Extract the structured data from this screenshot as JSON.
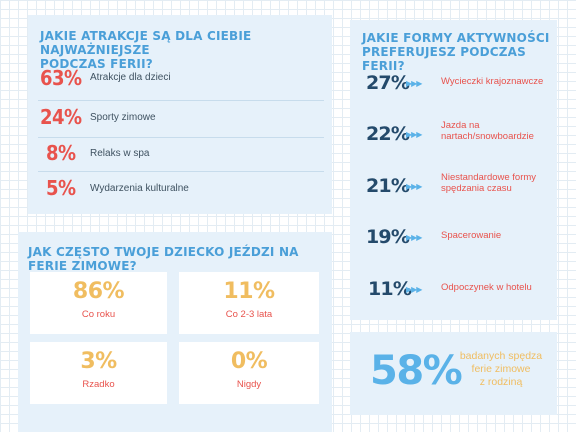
{
  "chart_data": [
    {
      "type": "table",
      "title": "JAKIE ATRAKCJE SĄ DLA CIEBIE NAJWAŻNIEJSZE PODCZAS FERII?",
      "categories": [
        "Atrakcje dla dzieci",
        "Sporty zimowe",
        "Relaks w spa",
        "Wydarzenia kulturalne"
      ],
      "values": [
        63,
        24,
        8,
        5
      ],
      "unit": "%"
    },
    {
      "type": "table",
      "title": "JAK CZĘSTO TWOJE DZIECKO JEŹDZI NA FERIE ZIMOWE?",
      "categories": [
        "Co roku",
        "Co 2-3 lata",
        "Rzadko",
        "Nigdy"
      ],
      "values": [
        86,
        11,
        3,
        0
      ],
      "unit": "%"
    },
    {
      "type": "table",
      "title": "JAKIE FORMY AKTYWNOŚCI PREFERUJESZ PODCZAS FERII?",
      "categories": [
        "Wycieczki krajoznawcze",
        "Jazda na nartach/snowboardzie",
        "Niestandardowe formy spędzania czasu",
        "Spacerowanie",
        "Odpoczynek w hotelu"
      ],
      "values": [
        27,
        22,
        21,
        19,
        11
      ],
      "unit": "%"
    }
  ],
  "display": {
    "attractions": {
      "title_line1": "JAKIE ATRAKCJE SĄ DLA CIEBIE NAJWAŻNIEJSZE",
      "title_line2": "PODCZAS FERII?",
      "items": [
        {
          "pct": "63%",
          "label": "Atrakcje dla dzieci"
        },
        {
          "pct": "24%",
          "label": "Sporty zimowe"
        },
        {
          "pct": "8%",
          "label": "Relaks w spa"
        },
        {
          "pct": "5%",
          "label": "Wydarzenia kulturalne"
        }
      ]
    },
    "frequency": {
      "title": "JAK CZĘSTO TWOJE DZIECKO JEŹDZI NA FERIE ZIMOWE?",
      "items": [
        {
          "pct": "86%",
          "label": "Co roku"
        },
        {
          "pct": "11%",
          "label": "Co 2-3 lata"
        },
        {
          "pct": "3%",
          "label": "Rzadko"
        },
        {
          "pct": "0%",
          "label": "Nigdy"
        }
      ]
    },
    "activities": {
      "title_line1": "JAKIE FORMY AKTYWNOŚCI",
      "title_line2": "PREFERUJESZ PODCZAS FERII?",
      "arrow_glyphs": "▶▶▶",
      "items": [
        {
          "pct": "27%",
          "label_lines": [
            "Wycieczki krajoznawcze"
          ]
        },
        {
          "pct": "22%",
          "label_lines": [
            "Jazda na",
            "nartach/snowboardzie"
          ]
        },
        {
          "pct": "21%",
          "label_lines": [
            "Niestandardowe formy",
            "spędzania czasu"
          ]
        },
        {
          "pct": "19%",
          "label_lines": [
            "Spacerowanie"
          ]
        },
        {
          "pct": "11%",
          "label_lines": [
            "Odpoczynek w hotelu"
          ]
        }
      ]
    },
    "summary": {
      "pct": "58%",
      "line1": "badanych spędza",
      "line2": "ferie zimowe",
      "line3": "z rodziną"
    }
  },
  "colors": {
    "panel": "#e6f1fa",
    "title_blue": "#4a9fd8",
    "red": "#e8534d",
    "navy": "#244a6b",
    "yellow": "#f0bd60",
    "arrow_blue": "#5ab2e8"
  }
}
